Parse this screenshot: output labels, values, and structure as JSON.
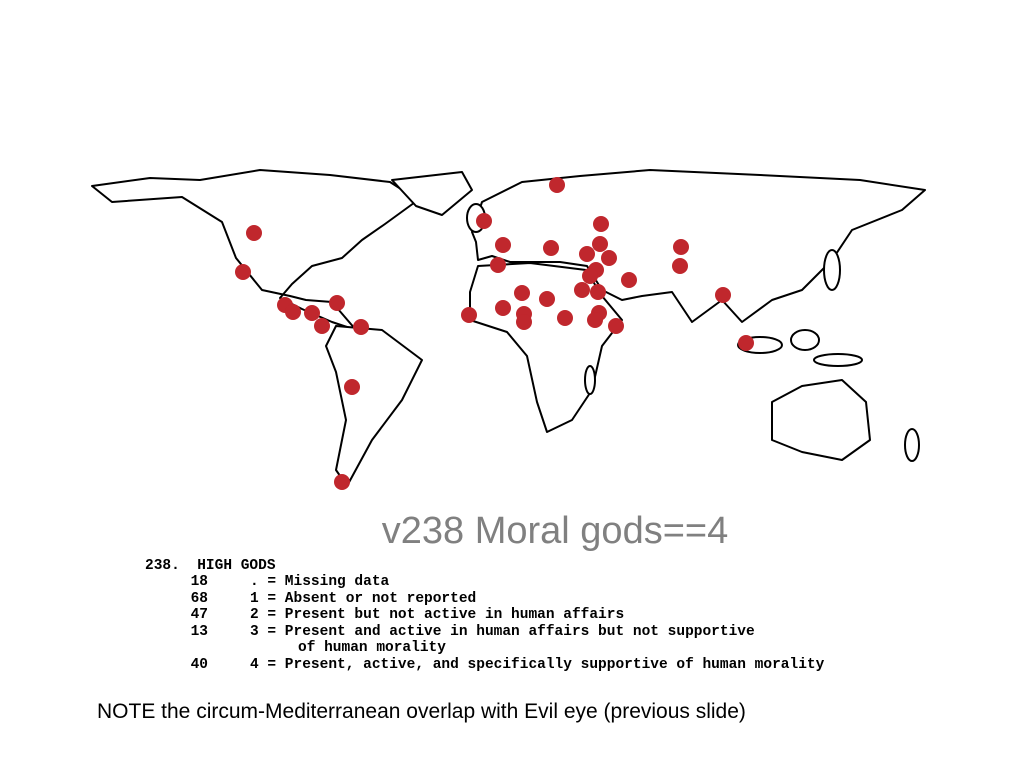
{
  "slide": {
    "title": "v238 Moral gods==4",
    "codebook": {
      "heading": "238.  HIGH GODS",
      "rows": [
        {
          "count": 18,
          "text": ". = Missing data"
        },
        {
          "count": 68,
          "text": "1 = Absent or not reported"
        },
        {
          "count": 47,
          "text": "2 = Present but not active in human affairs"
        },
        {
          "count": 13,
          "text": "3 = Present and active in human affairs but not supportive",
          "continuation": "of human morality"
        },
        {
          "count": 40,
          "text": "4 = Present, active, and specifically supportive of human morality"
        }
      ]
    },
    "note": "NOTE the circum-Mediterranean overlap with Evil eye (previous slide)"
  }
}
